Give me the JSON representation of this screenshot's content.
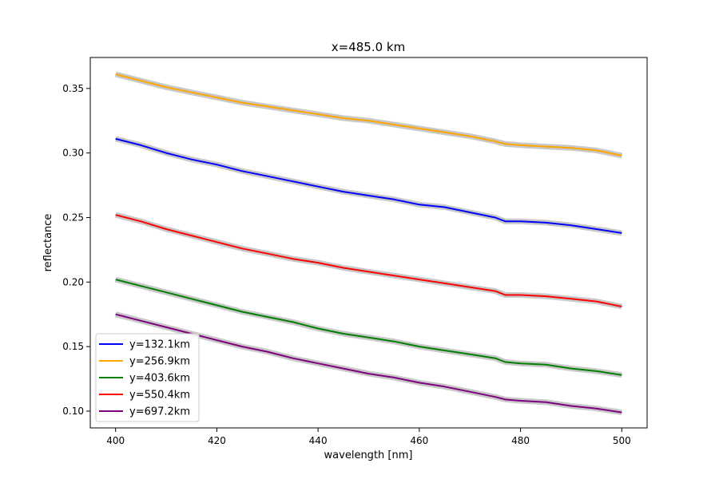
{
  "chart_data": {
    "type": "line",
    "title": "x=485.0 km",
    "xlabel": "wavelength [nm]",
    "ylabel": "reflectance",
    "xlim": [
      395,
      505
    ],
    "ylim": [
      0.087,
      0.374
    ],
    "xticks": [
      400,
      420,
      440,
      460,
      480,
      500
    ],
    "xtick_labels": [
      "400",
      "420",
      "440",
      "460",
      "480",
      "500"
    ],
    "yticks": [
      0.1,
      0.15,
      0.2,
      0.25,
      0.3,
      0.35
    ],
    "ytick_labels": [
      "0.10",
      "0.15",
      "0.20",
      "0.25",
      "0.30",
      "0.35"
    ],
    "grid": false,
    "legend_position": "lower-left",
    "uncertainty_band_color": "#c8c8c8",
    "x": [
      400,
      405,
      410,
      415,
      420,
      425,
      430,
      435,
      440,
      445,
      450,
      455,
      460,
      465,
      470,
      475,
      477,
      480,
      485,
      490,
      495,
      500
    ],
    "series": [
      {
        "name": "y=132.1km",
        "color": "#0000ff",
        "values": [
          0.311,
          0.306,
          0.3,
          0.295,
          0.291,
          0.286,
          0.282,
          0.278,
          0.274,
          0.27,
          0.267,
          0.264,
          0.26,
          0.258,
          0.254,
          0.25,
          0.247,
          0.247,
          0.246,
          0.244,
          0.241,
          0.238
        ]
      },
      {
        "name": "y=256.9km",
        "color": "#ffa500",
        "values": [
          0.361,
          0.356,
          0.351,
          0.347,
          0.343,
          0.339,
          0.336,
          0.333,
          0.33,
          0.327,
          0.325,
          0.322,
          0.319,
          0.316,
          0.313,
          0.309,
          0.307,
          0.306,
          0.305,
          0.304,
          0.302,
          0.298
        ]
      },
      {
        "name": "y=403.6km",
        "color": "#008000",
        "values": [
          0.202,
          0.197,
          0.192,
          0.187,
          0.182,
          0.177,
          0.173,
          0.169,
          0.164,
          0.16,
          0.157,
          0.154,
          0.15,
          0.147,
          0.144,
          0.141,
          0.138,
          0.137,
          0.136,
          0.133,
          0.131,
          0.128
        ]
      },
      {
        "name": "y=550.4km",
        "color": "#ff0000",
        "values": [
          0.252,
          0.247,
          0.241,
          0.236,
          0.231,
          0.226,
          0.222,
          0.218,
          0.215,
          0.211,
          0.208,
          0.205,
          0.202,
          0.199,
          0.196,
          0.193,
          0.19,
          0.19,
          0.189,
          0.187,
          0.185,
          0.181
        ]
      },
      {
        "name": "y=697.2km",
        "color": "#800080",
        "values": [
          0.175,
          0.17,
          0.165,
          0.16,
          0.155,
          0.15,
          0.146,
          0.141,
          0.137,
          0.133,
          0.129,
          0.126,
          0.122,
          0.119,
          0.115,
          0.111,
          0.109,
          0.108,
          0.107,
          0.104,
          0.102,
          0.099
        ]
      }
    ]
  }
}
